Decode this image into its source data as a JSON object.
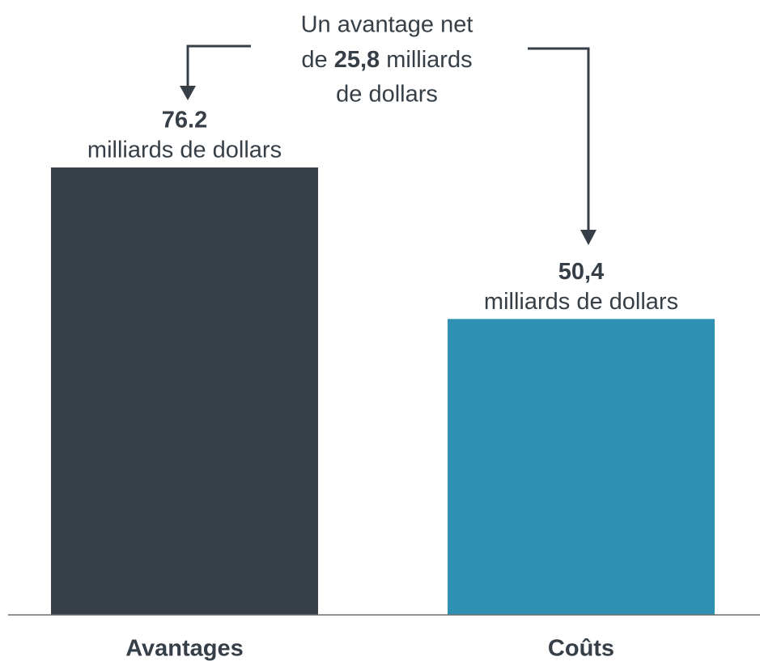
{
  "chart_data": {
    "type": "bar",
    "categories": [
      "Avantages",
      "Coûts"
    ],
    "values": [
      76.2,
      50.4
    ],
    "value_labels": [
      "76.2",
      "50,4"
    ],
    "value_unit": "milliards de dollars",
    "colors": [
      "#363f48",
      "#2e90b2"
    ],
    "ylim": [
      0,
      100
    ],
    "annotation": {
      "line1": "Un avantage net",
      "line2_before": "de",
      "value_label": "25,8",
      "line2_after": "milliards",
      "line3": "de dollars"
    }
  }
}
